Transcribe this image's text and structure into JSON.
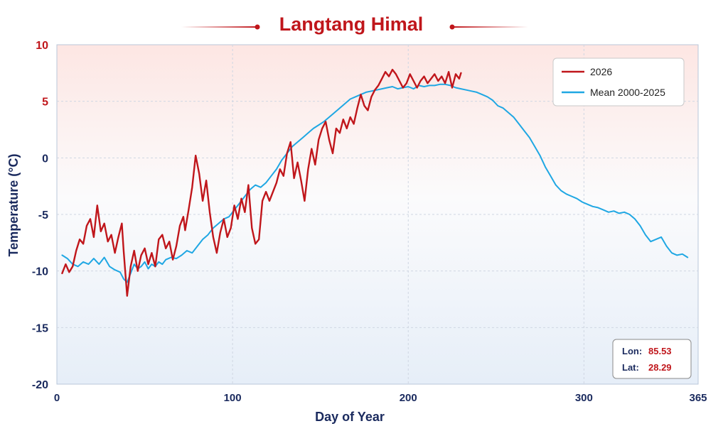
{
  "chart_data": {
    "type": "line",
    "title": "Langtang Himal",
    "xlabel": "Day of Year",
    "ylabel": "Temperature (°C)",
    "xlim": [
      0,
      365
    ],
    "ylim": [
      -20,
      10
    ],
    "x_ticks": [
      0,
      100,
      200,
      300,
      365
    ],
    "y_ticks": [
      10,
      5,
      0,
      -5,
      -10,
      -15,
      -20
    ],
    "grid": true,
    "legend_position": "top-right",
    "series": [
      {
        "name": "2026",
        "color": "#c0161b",
        "points": [
          [
            3,
            -10.2
          ],
          [
            5,
            -9.4
          ],
          [
            7,
            -10.1
          ],
          [
            9,
            -9.6
          ],
          [
            11,
            -8.2
          ],
          [
            13,
            -7.2
          ],
          [
            15,
            -7.6
          ],
          [
            17,
            -6.0
          ],
          [
            19,
            -5.4
          ],
          [
            21,
            -7.0
          ],
          [
            23,
            -4.2
          ],
          [
            25,
            -6.5
          ],
          [
            27,
            -5.8
          ],
          [
            29,
            -7.4
          ],
          [
            31,
            -6.8
          ],
          [
            33,
            -8.4
          ],
          [
            35,
            -7.0
          ],
          [
            37,
            -5.8
          ],
          [
            38,
            -8.2
          ],
          [
            40,
            -12.2
          ],
          [
            42,
            -9.6
          ],
          [
            44,
            -8.2
          ],
          [
            46,
            -10.0
          ],
          [
            48,
            -8.6
          ],
          [
            50,
            -8.0
          ],
          [
            52,
            -9.4
          ],
          [
            54,
            -8.4
          ],
          [
            56,
            -9.6
          ],
          [
            58,
            -7.2
          ],
          [
            60,
            -6.8
          ],
          [
            62,
            -8.0
          ],
          [
            64,
            -7.4
          ],
          [
            66,
            -9.0
          ],
          [
            68,
            -7.8
          ],
          [
            70,
            -6.0
          ],
          [
            72,
            -5.2
          ],
          [
            73,
            -6.4
          ],
          [
            75,
            -4.6
          ],
          [
            77,
            -2.6
          ],
          [
            79,
            0.2
          ],
          [
            81,
            -1.4
          ],
          [
            83,
            -3.8
          ],
          [
            85,
            -2.0
          ],
          [
            87,
            -4.8
          ],
          [
            89,
            -7.0
          ],
          [
            91,
            -8.4
          ],
          [
            93,
            -6.6
          ],
          [
            95,
            -5.4
          ],
          [
            97,
            -7.0
          ],
          [
            99,
            -6.2
          ],
          [
            101,
            -4.2
          ],
          [
            103,
            -5.4
          ],
          [
            105,
            -3.6
          ],
          [
            107,
            -4.8
          ],
          [
            109,
            -2.4
          ],
          [
            111,
            -6.2
          ],
          [
            113,
            -7.6
          ],
          [
            115,
            -7.2
          ],
          [
            117,
            -3.8
          ],
          [
            119,
            -3.0
          ],
          [
            121,
            -3.8
          ],
          [
            125,
            -2.2
          ],
          [
            127,
            -1.0
          ],
          [
            129,
            -1.6
          ],
          [
            131,
            0.4
          ],
          [
            133,
            1.4
          ],
          [
            135,
            -1.8
          ],
          [
            137,
            -0.4
          ],
          [
            139,
            -2.0
          ],
          [
            141,
            -3.8
          ],
          [
            143,
            -1.0
          ],
          [
            145,
            0.8
          ],
          [
            147,
            -0.6
          ],
          [
            149,
            1.6
          ],
          [
            151,
            2.6
          ],
          [
            153,
            3.2
          ],
          [
            155,
            1.6
          ],
          [
            157,
            0.4
          ],
          [
            159,
            2.6
          ],
          [
            161,
            2.2
          ],
          [
            163,
            3.4
          ],
          [
            165,
            2.6
          ],
          [
            167,
            3.6
          ],
          [
            169,
            3.0
          ],
          [
            171,
            4.4
          ],
          [
            173,
            5.6
          ],
          [
            175,
            4.6
          ],
          [
            177,
            4.2
          ],
          [
            179,
            5.4
          ],
          [
            181,
            6.0
          ],
          [
            183,
            6.4
          ],
          [
            185,
            7.0
          ],
          [
            187,
            7.6
          ],
          [
            189,
            7.2
          ],
          [
            191,
            7.8
          ],
          [
            193,
            7.4
          ],
          [
            195,
            6.8
          ],
          [
            197,
            6.2
          ],
          [
            199,
            6.6
          ],
          [
            201,
            7.4
          ],
          [
            203,
            6.8
          ],
          [
            205,
            6.2
          ],
          [
            207,
            6.8
          ],
          [
            209,
            7.2
          ],
          [
            211,
            6.6
          ],
          [
            213,
            7.0
          ],
          [
            215,
            7.4
          ],
          [
            217,
            6.8
          ],
          [
            219,
            7.2
          ],
          [
            221,
            6.6
          ],
          [
            223,
            7.6
          ],
          [
            225,
            6.2
          ],
          [
            227,
            7.4
          ],
          [
            229,
            7.0
          ],
          [
            230,
            7.5
          ]
        ]
      },
      {
        "name": "Mean 2000-2025",
        "color": "#1fa7e3",
        "points": [
          [
            3,
            -8.6
          ],
          [
            6,
            -8.9
          ],
          [
            9,
            -9.4
          ],
          [
            12,
            -9.6
          ],
          [
            15,
            -9.2
          ],
          [
            18,
            -9.4
          ],
          [
            21,
            -8.9
          ],
          [
            24,
            -9.4
          ],
          [
            27,
            -8.8
          ],
          [
            30,
            -9.6
          ],
          [
            33,
            -9.9
          ],
          [
            36,
            -10.1
          ],
          [
            38,
            -10.7
          ],
          [
            40,
            -11.0
          ],
          [
            42,
            -10.2
          ],
          [
            44,
            -9.4
          ],
          [
            46,
            -9.8
          ],
          [
            48,
            -9.6
          ],
          [
            50,
            -9.2
          ],
          [
            52,
            -9.8
          ],
          [
            54,
            -9.4
          ],
          [
            56,
            -9.6
          ],
          [
            58,
            -9.2
          ],
          [
            60,
            -9.4
          ],
          [
            62,
            -9.0
          ],
          [
            65,
            -8.8
          ],
          [
            68,
            -8.9
          ],
          [
            71,
            -8.6
          ],
          [
            74,
            -8.2
          ],
          [
            77,
            -8.4
          ],
          [
            80,
            -7.8
          ],
          [
            83,
            -7.2
          ],
          [
            86,
            -6.8
          ],
          [
            89,
            -6.2
          ],
          [
            92,
            -5.8
          ],
          [
            95,
            -5.4
          ],
          [
            98,
            -5.2
          ],
          [
            101,
            -4.6
          ],
          [
            104,
            -4.0
          ],
          [
            107,
            -3.4
          ],
          [
            110,
            -2.8
          ],
          [
            113,
            -2.4
          ],
          [
            116,
            -2.6
          ],
          [
            119,
            -2.2
          ],
          [
            122,
            -1.6
          ],
          [
            125,
            -1.0
          ],
          [
            128,
            -0.2
          ],
          [
            131,
            0.4
          ],
          [
            134,
            1.0
          ],
          [
            137,
            1.4
          ],
          [
            140,
            1.8
          ],
          [
            143,
            2.2
          ],
          [
            146,
            2.6
          ],
          [
            149,
            2.9
          ],
          [
            152,
            3.2
          ],
          [
            155,
            3.6
          ],
          [
            158,
            4.0
          ],
          [
            161,
            4.4
          ],
          [
            164,
            4.8
          ],
          [
            167,
            5.2
          ],
          [
            170,
            5.4
          ],
          [
            173,
            5.6
          ],
          [
            176,
            5.8
          ],
          [
            179,
            5.9
          ],
          [
            182,
            6.0
          ],
          [
            185,
            6.1
          ],
          [
            188,
            6.2
          ],
          [
            191,
            6.3
          ],
          [
            194,
            6.1
          ],
          [
            197,
            6.2
          ],
          [
            200,
            6.3
          ],
          [
            203,
            6.1
          ],
          [
            206,
            6.4
          ],
          [
            209,
            6.3
          ],
          [
            212,
            6.4
          ],
          [
            215,
            6.4
          ],
          [
            218,
            6.5
          ],
          [
            221,
            6.5
          ],
          [
            224,
            6.4
          ],
          [
            227,
            6.2
          ],
          [
            230,
            6.1
          ],
          [
            233,
            6.0
          ],
          [
            236,
            5.9
          ],
          [
            239,
            5.8
          ],
          [
            242,
            5.6
          ],
          [
            245,
            5.4
          ],
          [
            248,
            5.1
          ],
          [
            251,
            4.6
          ],
          [
            254,
            4.4
          ],
          [
            257,
            4.0
          ],
          [
            260,
            3.6
          ],
          [
            263,
            3.0
          ],
          [
            266,
            2.4
          ],
          [
            269,
            1.8
          ],
          [
            272,
            1.0
          ],
          [
            275,
            0.2
          ],
          [
            278,
            -0.8
          ],
          [
            281,
            -1.6
          ],
          [
            284,
            -2.4
          ],
          [
            287,
            -2.9
          ],
          [
            290,
            -3.2
          ],
          [
            293,
            -3.4
          ],
          [
            296,
            -3.6
          ],
          [
            299,
            -3.9
          ],
          [
            302,
            -4.1
          ],
          [
            305,
            -4.3
          ],
          [
            308,
            -4.4
          ],
          [
            311,
            -4.6
          ],
          [
            314,
            -4.8
          ],
          [
            317,
            -4.7
          ],
          [
            320,
            -4.9
          ],
          [
            323,
            -4.8
          ],
          [
            326,
            -5.0
          ],
          [
            329,
            -5.4
          ],
          [
            332,
            -6.0
          ],
          [
            335,
            -6.8
          ],
          [
            338,
            -7.4
          ],
          [
            341,
            -7.2
          ],
          [
            344,
            -7.0
          ],
          [
            347,
            -7.8
          ],
          [
            350,
            -8.4
          ],
          [
            353,
            -8.6
          ],
          [
            356,
            -8.5
          ],
          [
            359,
            -8.8
          ]
        ]
      }
    ],
    "annotation": {
      "lon_label": "Lon:",
      "lon_value": "85.53",
      "lat_label": "Lat:",
      "lat_value": "28.29"
    },
    "colors": {
      "title": "#c0161b",
      "y_tick_positive": "#c0161b",
      "y_tick_negative": "#1a2a5e",
      "axis_text": "#1a2a5e"
    }
  }
}
